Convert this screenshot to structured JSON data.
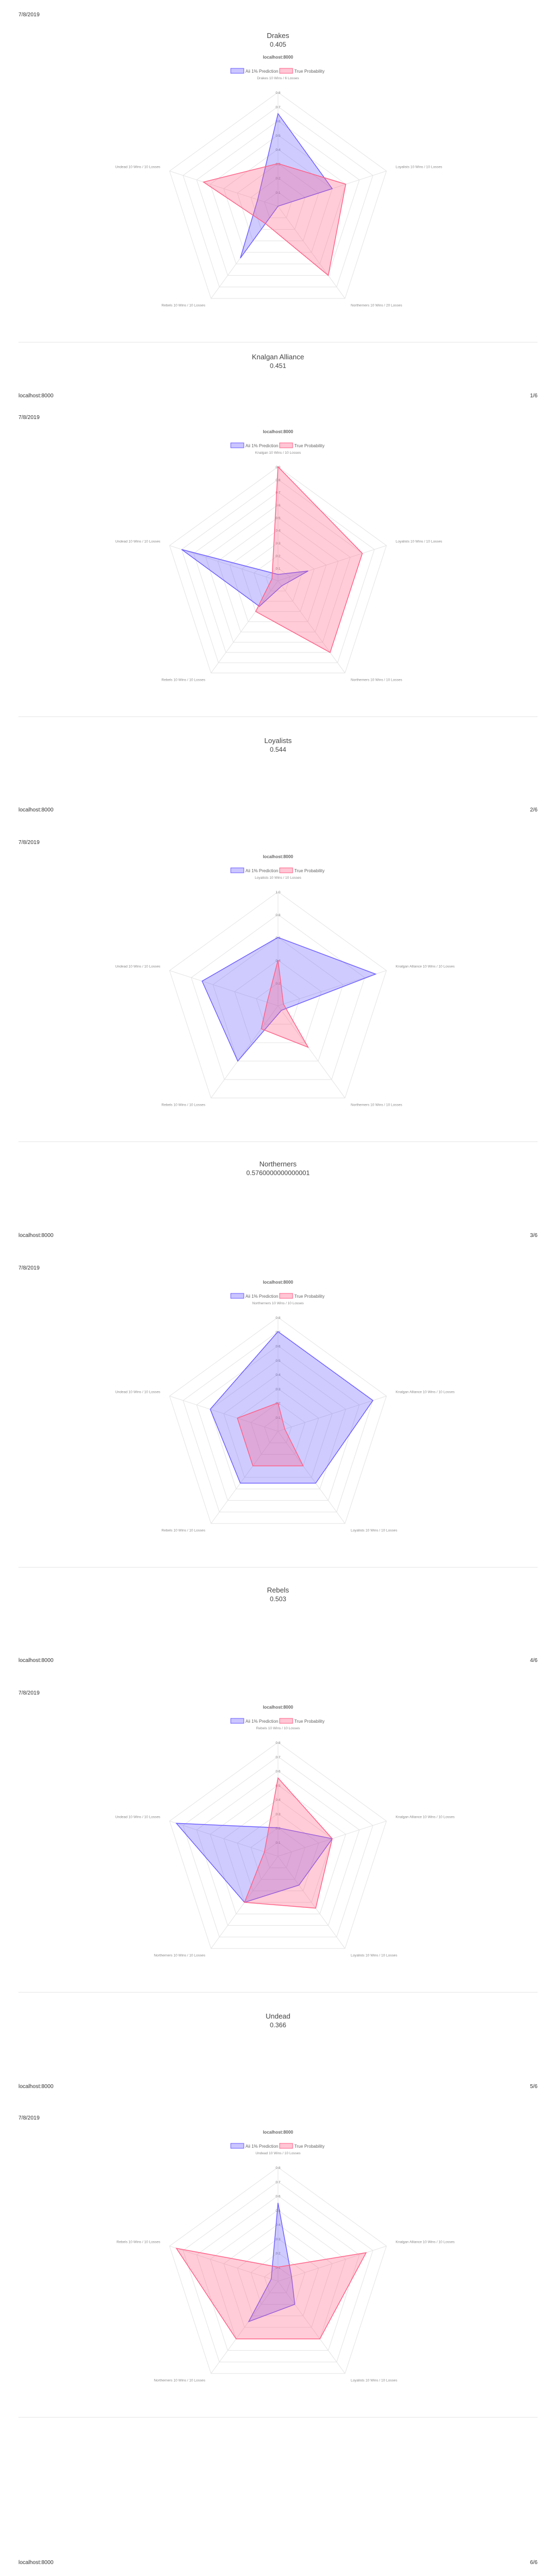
{
  "print": {
    "date": "7/8/2019",
    "host": "localhost:8000",
    "url": "localhost:8000",
    "pages": [
      "1/6",
      "2/6",
      "3/6",
      "4/6",
      "5/6",
      "6/6"
    ]
  },
  "legend": {
    "ai_label": "Aii 1% Prediction",
    "true_label": "True Probability",
    "ai_color": "#6b5cff",
    "true_color": "#ff5f86"
  },
  "chart_data": [
    {
      "type": "radar",
      "faction": "Drakes",
      "score": "0.405",
      "axes": [
        "Drakes 10 Wins / 6 Losses",
        "Loyalists 10 Wins / 10 Losses",
        "Northerners 10 Wins / 20 Losses",
        "Rebels 10 Wins / 10 Losses",
        "Undead 10 Wins / 10 Losses"
      ],
      "rmax": 0.8,
      "ticks": [
        "0.1",
        "0.2",
        "0.3",
        "0.4",
        "0.5",
        "0.6",
        "0.7",
        "0.8"
      ],
      "series": [
        {
          "name": "Aii 1% Prediction",
          "values": [
            0.65,
            0.4,
            0.0,
            0.45,
            0.15
          ]
        },
        {
          "name": "True Probability",
          "values": [
            0.3,
            0.5,
            0.6,
            0.15,
            0.55
          ]
        }
      ]
    },
    {
      "type": "radar",
      "faction": "Knalgan Alliance",
      "score": "0.451",
      "axes": [
        "Knalgan 10 Wins / 10 Losses",
        "Loyalists 10 Wins / 10 Losses",
        "Northerners 10 Wins / 10 Losses",
        "Rebels 10 Wins / 10 Losses",
        "Undead 10 Wins / 10 Losses"
      ],
      "rmax": 0.9,
      "ticks": [
        "0.1",
        "0.2",
        "0.3",
        "0.4",
        "0.5",
        "0.6",
        "0.7",
        "0.8",
        "0.9"
      ],
      "series": [
        {
          "name": "Aii 1% Prediction",
          "values": [
            0.05,
            0.25,
            0.05,
            0.25,
            0.8
          ]
        },
        {
          "name": "True Probability",
          "values": [
            0.9,
            0.7,
            0.7,
            0.3,
            0.05
          ]
        }
      ]
    },
    {
      "type": "radar",
      "faction": "Loyalists",
      "score": "0.544",
      "axes": [
        "Loyalists 10 Wins / 10 Losses",
        "Knalgan Alliance 10 Wins / 10 Losses",
        "Northerners 10 Wins / 10 Losses",
        "Rebels 10 Wins / 10 Losses",
        "Undead 10 Wins / 10 Losses"
      ],
      "rmax": 1.0,
      "ticks": [
        "0.2",
        "0.4",
        "0.6",
        "0.8",
        "1.0"
      ],
      "series": [
        {
          "name": "Aii 1% Prediction",
          "values": [
            0.6,
            0.9,
            0.05,
            0.6,
            0.7
          ]
        },
        {
          "name": "True Probability",
          "values": [
            0.4,
            0.05,
            0.45,
            0.25,
            0.1
          ]
        }
      ]
    },
    {
      "type": "radar",
      "faction": "Northerners",
      "score": "0.5760000000000001",
      "axes": [
        "Northerners 10 Wins / 10 Losses",
        "Knalgan Alliance 10 Wins / 10 Losses",
        "Loyalists 10 Wins / 10 Losses",
        "Rebels 10 Wins / 10 Losses",
        "Undead 10 Wins / 10 Losses"
      ],
      "rmax": 0.8,
      "ticks": [
        "0.1",
        "0.2",
        "0.3",
        "0.4",
        "0.5",
        "0.6",
        "0.7",
        "0.8"
      ],
      "series": [
        {
          "name": "Aii 1% Prediction",
          "values": [
            0.7,
            0.7,
            0.45,
            0.45,
            0.5
          ]
        },
        {
          "name": "True Probability",
          "values": [
            0.2,
            0.05,
            0.3,
            0.3,
            0.3
          ]
        }
      ]
    },
    {
      "type": "radar",
      "faction": "Rebels",
      "score": "0.503",
      "axes": [
        "Rebels 10 Wins / 10 Losses",
        "Knalgan Alliance 10 Wins / 10 Losses",
        "Loyalists 10 Wins / 10 Losses",
        "Northerners 10 Wins / 10 Losses",
        "Undead 10 Wins / 10 Losses"
      ],
      "rmax": 0.8,
      "ticks": [
        "0.1",
        "0.2",
        "0.3",
        "0.4",
        "0.5",
        "0.6",
        "0.7",
        "0.8"
      ],
      "series": [
        {
          "name": "Aii 1% Prediction",
          "values": [
            0.2,
            0.4,
            0.25,
            0.4,
            0.75
          ]
        },
        {
          "name": "True Probability",
          "values": [
            0.55,
            0.4,
            0.45,
            0.4,
            0.1
          ]
        }
      ]
    },
    {
      "type": "radar",
      "faction": "Undead",
      "score": "0.366",
      "axes": [
        "Undead 10 Wins / 10 Losses",
        "Knalgan Alliance 10 Wins / 10 Losses",
        "Loyalists 10 Wins / 10 Losses",
        "Northerners 10 Wins / 10 Losses",
        "Rebels 10 Wins / 10 Losses"
      ],
      "rmax": 0.8,
      "ticks": [
        "0.1",
        "0.2",
        "0.3",
        "0.4",
        "0.5",
        "0.6",
        "0.7",
        "0.8"
      ],
      "series": [
        {
          "name": "Aii 1% Prediction",
          "values": [
            0.55,
            0.1,
            0.2,
            0.35,
            0.05
          ]
        },
        {
          "name": "True Probability",
          "values": [
            0.1,
            0.65,
            0.5,
            0.5,
            0.75
          ]
        }
      ]
    }
  ]
}
